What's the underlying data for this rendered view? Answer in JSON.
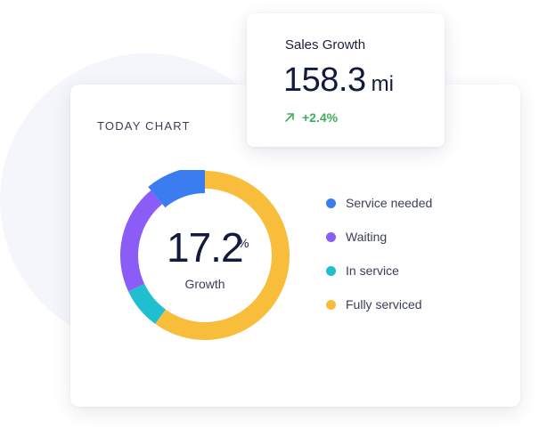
{
  "chart_card": {
    "title": "TODAY CHART",
    "center_value": "17.2",
    "center_unit": "%",
    "center_label": "Growth"
  },
  "stat_card": {
    "title": "Sales Growth",
    "value": "158.3",
    "unit": "mi",
    "change": "+2.4%",
    "change_icon": "trend-up-arrow-icon",
    "change_color": "#3fae5a"
  },
  "chart_data": {
    "type": "pie",
    "title": "TODAY CHART",
    "start_angle_deg": 0,
    "categories": [
      "Fully serviced",
      "In service",
      "Waiting",
      "Service needed"
    ],
    "values": [
      60,
      8,
      21,
      11
    ],
    "colors": [
      "#f7bd3b",
      "#1fbfcf",
      "#8b5cf6",
      "#3b7cf0"
    ],
    "highlight": "Service needed",
    "legend": [
      {
        "label": "Service needed",
        "color": "#3b7cf0"
      },
      {
        "label": "Waiting",
        "color": "#8b5cf6"
      },
      {
        "label": "In service",
        "color": "#1fbfcf"
      },
      {
        "label": "Fully serviced",
        "color": "#f7bd3b"
      }
    ],
    "legend_position": "right",
    "center_label": "Growth"
  }
}
